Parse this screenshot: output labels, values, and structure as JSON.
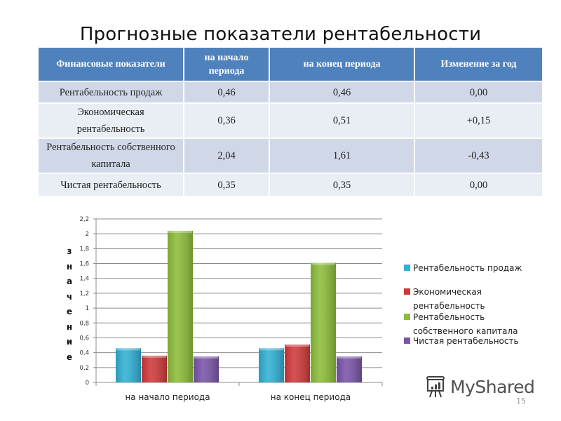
{
  "slide": {
    "title": "Прогнозные показатели рентабельности",
    "page_number": "15",
    "watermark": "MyShared"
  },
  "table": {
    "headers": [
      "Финансовые показатели",
      "на начало периода",
      "на конец периода",
      "Изменение за год"
    ],
    "rows": [
      [
        "Рентабельность продаж",
        "0,46",
        "0,46",
        "0,00"
      ],
      [
        "Экономическая рентабельность",
        "0,36",
        "0,51",
        "+0,15"
      ],
      [
        "Рентабельность собственного капитала",
        "2,04",
        "1,61",
        "-0,43"
      ],
      [
        "Чистая рентабельность",
        "0,35",
        "0,35",
        "0,00"
      ]
    ],
    "header_color": "#4f81bd"
  },
  "chart_data": {
    "type": "bar",
    "title": "",
    "xlabel": "",
    "ylabel": "значение",
    "categories": [
      "на начало периода",
      "на конец периода"
    ],
    "series": [
      {
        "name": "Рентабельность продаж",
        "values": [
          0.46,
          0.46
        ],
        "color": "#31b0d5"
      },
      {
        "name": "Экономическая рентабельность",
        "values": [
          0.36,
          0.51
        ],
        "color": "#d0393b"
      },
      {
        "name": "Рентабельность собственного капитала",
        "values": [
          2.04,
          1.61
        ],
        "color": "#8cbd3a"
      },
      {
        "name": "Чистая рентабельность",
        "values": [
          0.35,
          0.35
        ],
        "color": "#7a55a8"
      }
    ],
    "ylim": [
      0,
      2.2
    ],
    "yticks": [
      "0",
      "0,2",
      "0,4",
      "0,6",
      "0,8",
      "1",
      "1,2",
      "1,4",
      "1,6",
      "1,8",
      "2",
      "2,2"
    ],
    "grid": true,
    "legend_position": "right"
  }
}
